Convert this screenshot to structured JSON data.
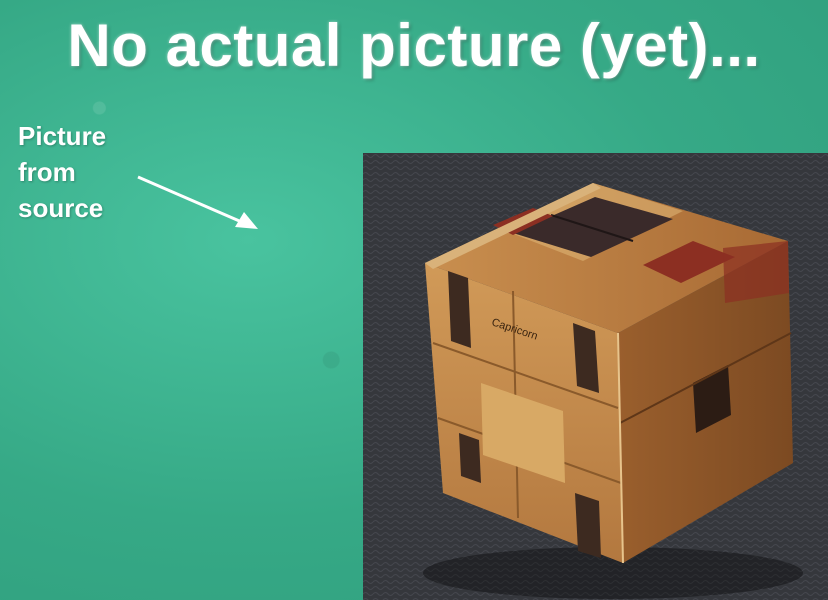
{
  "slide": {
    "title": "No actual picture (yet)...",
    "caption_lines": [
      "Picture",
      "from",
      "source"
    ]
  },
  "photo": {
    "engraving": "Capricorn",
    "subject": "wooden cube puzzle"
  },
  "colors": {
    "background": "#3cb190",
    "text": "#ffffff",
    "arrow": "#ffffff"
  }
}
